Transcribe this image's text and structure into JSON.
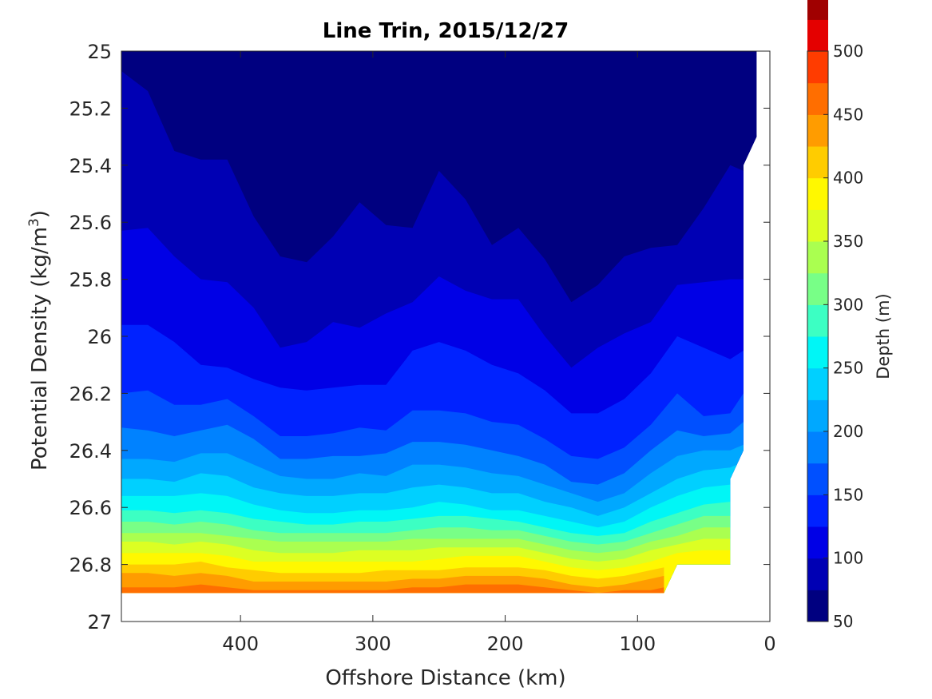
{
  "chart_data": {
    "type": "heatmap",
    "subtype": "filled-contour",
    "title": "Line Trin, 2015/12/27",
    "xlabel": "Offshore Distance (km)",
    "ylabel_main": "Potential Density (kg/m",
    "ylabel_sup": "3",
    "ylabel_end": ")",
    "xlim": [
      490,
      0
    ],
    "ylim": [
      25,
      27
    ],
    "x_reversed": true,
    "y_reversed": true,
    "xticks": [
      400,
      300,
      200,
      100,
      0
    ],
    "xtick_labels": [
      "400",
      "300",
      "200",
      "100",
      "0"
    ],
    "yticks": [
      25,
      25.2,
      25.4,
      25.6,
      25.8,
      26,
      26.2,
      26.4,
      26.6,
      26.8,
      27
    ],
    "ytick_labels": [
      "25",
      "25.2",
      "25.4",
      "25.6",
      "25.8",
      "26",
      "26.2",
      "26.4",
      "26.6",
      "26.8",
      "27"
    ],
    "grid": false,
    "colorbar": {
      "label": "Depth (m)",
      "range": [
        50,
        500
      ],
      "ticks": [
        50,
        100,
        150,
        200,
        250,
        300,
        350,
        400,
        450,
        500
      ],
      "tick_labels": [
        "50",
        "100",
        "150",
        "200",
        "250",
        "300",
        "350",
        "400",
        "450",
        "500"
      ],
      "level_step": 25,
      "colors": [
        "#000080",
        "#0000B4",
        "#0000E6",
        "#0022FF",
        "#0050FF",
        "#0082FF",
        "#00A8FF",
        "#00D0FF",
        "#00F6F6",
        "#3CFFC3",
        "#78FF87",
        "#AAFF50",
        "#DCFF23",
        "#FFF800",
        "#FFCC00",
        "#FF9C00",
        "#FF6E00",
        "#FF3C00",
        "#E40000",
        "#A00000"
      ]
    },
    "contours": [
      {
        "depth": 75,
        "x": [
          490,
          470,
          450,
          430,
          410,
          390,
          370,
          350,
          330,
          310,
          290,
          270,
          250,
          230,
          210,
          190,
          170,
          150,
          130,
          110,
          90,
          70,
          50,
          30,
          15,
          10
        ],
        "y": [
          25,
          25,
          25,
          25,
          25,
          25,
          25.13,
          25.15,
          25.18,
          25.17,
          25.12,
          25.06,
          25,
          25,
          25.2,
          25.25,
          25.45,
          25.45,
          25.25,
          25.26,
          25.34,
          25.3,
          25.1,
          25.02,
          25.12,
          25.3
        ]
      },
      {
        "depth": 100,
        "x": [
          490,
          470,
          450,
          430,
          410,
          390,
          370,
          350,
          330,
          310,
          290,
          270,
          250,
          230,
          210,
          190,
          170,
          150,
          130,
          110,
          90,
          70,
          50,
          30,
          20
        ],
        "y": [
          25.07,
          25.14,
          25.35,
          25.38,
          25.38,
          25.58,
          25.72,
          25.74,
          25.65,
          25.53,
          25.61,
          25.62,
          25.42,
          25.52,
          25.68,
          25.62,
          25.73,
          25.88,
          25.82,
          25.72,
          25.69,
          25.68,
          25.55,
          25.4,
          25.42
        ]
      },
      {
        "depth": 125,
        "x": [
          490,
          470,
          450,
          430,
          410,
          390,
          370,
          350,
          330,
          310,
          290,
          270,
          250,
          230,
          210,
          190,
          170,
          150,
          130,
          110,
          90,
          70,
          50,
          30,
          20
        ],
        "y": [
          25.63,
          25.62,
          25.72,
          25.8,
          25.81,
          25.9,
          26.04,
          26.02,
          25.95,
          25.97,
          25.92,
          25.88,
          25.79,
          25.84,
          25.87,
          25.87,
          26.0,
          26.11,
          26.04,
          25.99,
          25.95,
          25.82,
          25.81,
          25.8,
          25.8
        ]
      },
      {
        "depth": 150,
        "x": [
          490,
          470,
          450,
          430,
          410,
          390,
          370,
          350,
          330,
          310,
          290,
          270,
          250,
          230,
          210,
          190,
          170,
          150,
          130,
          110,
          90,
          70,
          50,
          30,
          20
        ],
        "y": [
          25.96,
          25.96,
          26.02,
          26.1,
          26.11,
          26.15,
          26.18,
          26.19,
          26.18,
          26.17,
          26.17,
          26.05,
          26.02,
          26.05,
          26.1,
          26.13,
          26.19,
          26.27,
          26.27,
          26.22,
          26.13,
          26.0,
          26.04,
          26.08,
          26.05
        ]
      },
      {
        "depth": 175,
        "x": [
          490,
          470,
          450,
          430,
          410,
          390,
          370,
          350,
          330,
          310,
          290,
          270,
          250,
          230,
          210,
          190,
          170,
          150,
          130,
          110,
          90,
          70,
          50,
          30,
          20
        ],
        "y": [
          26.2,
          26.19,
          26.24,
          26.24,
          26.22,
          26.28,
          26.35,
          26.35,
          26.34,
          26.32,
          26.33,
          26.26,
          26.26,
          26.27,
          26.3,
          26.31,
          26.36,
          26.42,
          26.43,
          26.39,
          26.31,
          26.2,
          26.28,
          26.27,
          26.2
        ]
      },
      {
        "depth": 200,
        "x": [
          490,
          470,
          450,
          430,
          410,
          390,
          370,
          350,
          330,
          310,
          290,
          270,
          250,
          230,
          210,
          190,
          170,
          150,
          130,
          110,
          90,
          70,
          50,
          30,
          20
        ],
        "y": [
          26.32,
          26.33,
          26.35,
          26.33,
          26.31,
          26.36,
          26.43,
          26.43,
          26.42,
          26.42,
          26.41,
          26.37,
          26.37,
          26.38,
          26.4,
          26.42,
          26.45,
          26.51,
          26.52,
          26.48,
          26.4,
          26.33,
          26.35,
          26.34,
          26.3
        ]
      },
      {
        "depth": 225,
        "x": [
          490,
          470,
          450,
          430,
          410,
          390,
          370,
          350,
          330,
          310,
          290,
          270,
          250,
          230,
          210,
          190,
          170,
          150,
          130,
          110,
          90,
          70,
          50,
          30,
          20
        ],
        "y": [
          26.43,
          26.43,
          26.44,
          26.41,
          26.41,
          26.45,
          26.49,
          26.5,
          26.5,
          26.48,
          26.49,
          26.45,
          26.45,
          26.46,
          26.48,
          26.49,
          26.52,
          26.55,
          26.58,
          26.55,
          26.48,
          26.42,
          26.4,
          26.4,
          26.38
        ]
      },
      {
        "depth": 250,
        "x": [
          490,
          470,
          450,
          430,
          410,
          390,
          370,
          350,
          330,
          310,
          290,
          270,
          250,
          230,
          210,
          190,
          170,
          150,
          130,
          110,
          90,
          70,
          50,
          30,
          20
        ],
        "y": [
          26.5,
          26.5,
          26.51,
          26.48,
          26.49,
          26.53,
          26.55,
          26.56,
          26.56,
          26.55,
          26.55,
          26.53,
          26.52,
          26.53,
          26.55,
          26.55,
          26.58,
          26.6,
          26.63,
          26.6,
          26.55,
          26.5,
          26.47,
          26.46,
          26.44
        ]
      },
      {
        "depth": 275,
        "x": [
          490,
          470,
          450,
          430,
          410,
          390,
          370,
          350,
          330,
          310,
          290,
          270,
          250,
          230,
          210,
          190,
          170,
          150,
          130,
          110,
          90,
          70,
          50,
          30
        ],
        "y": [
          26.56,
          26.56,
          26.56,
          26.55,
          26.56,
          26.59,
          26.61,
          26.62,
          26.62,
          26.61,
          26.61,
          26.6,
          26.58,
          26.59,
          26.61,
          26.61,
          26.63,
          26.65,
          26.67,
          26.65,
          26.6,
          26.56,
          26.53,
          26.52
        ]
      },
      {
        "depth": 300,
        "x": [
          490,
          470,
          450,
          430,
          410,
          390,
          370,
          350,
          330,
          310,
          290,
          270,
          250,
          230,
          210,
          190,
          170,
          150,
          130,
          110,
          90,
          70,
          50,
          30
        ],
        "y": [
          26.61,
          26.61,
          26.62,
          26.61,
          26.62,
          26.64,
          26.65,
          26.66,
          26.66,
          26.65,
          26.65,
          26.64,
          26.63,
          26.63,
          26.64,
          26.65,
          26.67,
          26.69,
          26.7,
          26.69,
          26.65,
          26.62,
          26.59,
          26.58
        ]
      },
      {
        "depth": 325,
        "x": [
          490,
          470,
          450,
          430,
          410,
          390,
          370,
          350,
          330,
          310,
          290,
          270,
          250,
          230,
          210,
          190,
          170,
          150,
          130,
          110,
          90,
          70,
          50,
          30
        ],
        "y": [
          26.65,
          26.65,
          26.66,
          26.65,
          26.66,
          26.68,
          26.69,
          26.69,
          26.69,
          26.69,
          26.69,
          26.68,
          26.67,
          26.67,
          26.68,
          26.68,
          26.7,
          26.72,
          26.73,
          26.72,
          26.69,
          26.66,
          26.63,
          26.63
        ]
      },
      {
        "depth": 350,
        "x": [
          490,
          470,
          450,
          430,
          410,
          390,
          370,
          350,
          330,
          310,
          290,
          270,
          250,
          230,
          210,
          190,
          170,
          150,
          130,
          110,
          90,
          70,
          50,
          30
        ],
        "y": [
          26.69,
          26.69,
          26.69,
          26.69,
          26.7,
          26.71,
          26.72,
          26.72,
          26.72,
          26.72,
          26.72,
          26.71,
          26.71,
          26.71,
          26.71,
          26.71,
          26.73,
          26.75,
          26.76,
          26.75,
          26.72,
          26.7,
          26.67,
          26.67
        ]
      },
      {
        "depth": 375,
        "x": [
          490,
          470,
          450,
          430,
          410,
          390,
          370,
          350,
          330,
          310,
          290,
          270,
          250,
          230,
          210,
          190,
          170,
          150,
          130,
          110,
          90,
          70,
          50,
          30
        ],
        "y": [
          26.72,
          26.72,
          26.73,
          26.72,
          26.73,
          26.75,
          26.76,
          26.76,
          26.76,
          26.75,
          26.75,
          26.75,
          26.74,
          26.74,
          26.74,
          26.74,
          26.76,
          26.78,
          26.79,
          26.78,
          26.75,
          26.73,
          26.71,
          26.71
        ]
      },
      {
        "depth": 400,
        "x": [
          490,
          470,
          450,
          430,
          410,
          390,
          370,
          350,
          330,
          310,
          290,
          270,
          250,
          230,
          210,
          190,
          170,
          150,
          130,
          110,
          90,
          70,
          50,
          30
        ],
        "y": [
          26.76,
          26.76,
          26.76,
          26.76,
          26.77,
          26.79,
          26.79,
          26.79,
          26.79,
          26.79,
          26.79,
          26.79,
          26.78,
          26.77,
          26.77,
          26.77,
          26.79,
          26.81,
          26.82,
          26.81,
          26.79,
          26.76,
          26.75,
          26.75
        ]
      },
      {
        "depth": 425,
        "x": [
          490,
          470,
          450,
          430,
          410,
          390,
          370,
          350,
          330,
          310,
          290,
          270,
          250,
          230,
          210,
          190,
          170,
          150,
          130,
          110,
          90,
          80
        ],
        "y": [
          26.8,
          26.8,
          26.8,
          26.79,
          26.81,
          26.82,
          26.83,
          26.83,
          26.83,
          26.83,
          26.82,
          26.82,
          26.82,
          26.81,
          26.81,
          26.81,
          26.82,
          26.84,
          26.85,
          26.84,
          26.82,
          26.81
        ]
      },
      {
        "depth": 450,
        "x": [
          490,
          470,
          450,
          430,
          410,
          390,
          370,
          350,
          330,
          310,
          290,
          270,
          250,
          230,
          210,
          190,
          170,
          150,
          130,
          110,
          90,
          80
        ],
        "y": [
          26.83,
          26.83,
          26.84,
          26.83,
          26.84,
          26.86,
          26.86,
          26.86,
          26.86,
          26.86,
          26.86,
          26.85,
          26.85,
          26.84,
          26.84,
          26.84,
          26.85,
          26.87,
          26.88,
          26.87,
          26.85,
          26.84
        ]
      },
      {
        "depth": 475,
        "x": [
          490,
          470,
          450,
          430,
          410,
          390,
          370,
          350,
          330,
          310,
          290,
          270,
          250,
          230,
          210,
          190,
          170,
          150,
          130,
          110,
          90,
          80
        ],
        "y": [
          26.88,
          26.88,
          26.88,
          26.87,
          26.88,
          26.89,
          26.89,
          26.89,
          26.89,
          26.89,
          26.89,
          26.88,
          26.88,
          26.87,
          26.87,
          26.87,
          26.88,
          26.89,
          26.9,
          26.89,
          26.89,
          26.88
        ]
      }
    ],
    "data_domain_boundary": {
      "x": [
        490,
        490,
        80,
        70,
        30,
        30,
        20,
        20,
        10,
        10,
        490
      ],
      "y": [
        25,
        26.9,
        26.9,
        26.8,
        26.8,
        26.5,
        26.4,
        25.4,
        25.3,
        25,
        25
      ]
    },
    "axes_color": "#262626"
  }
}
